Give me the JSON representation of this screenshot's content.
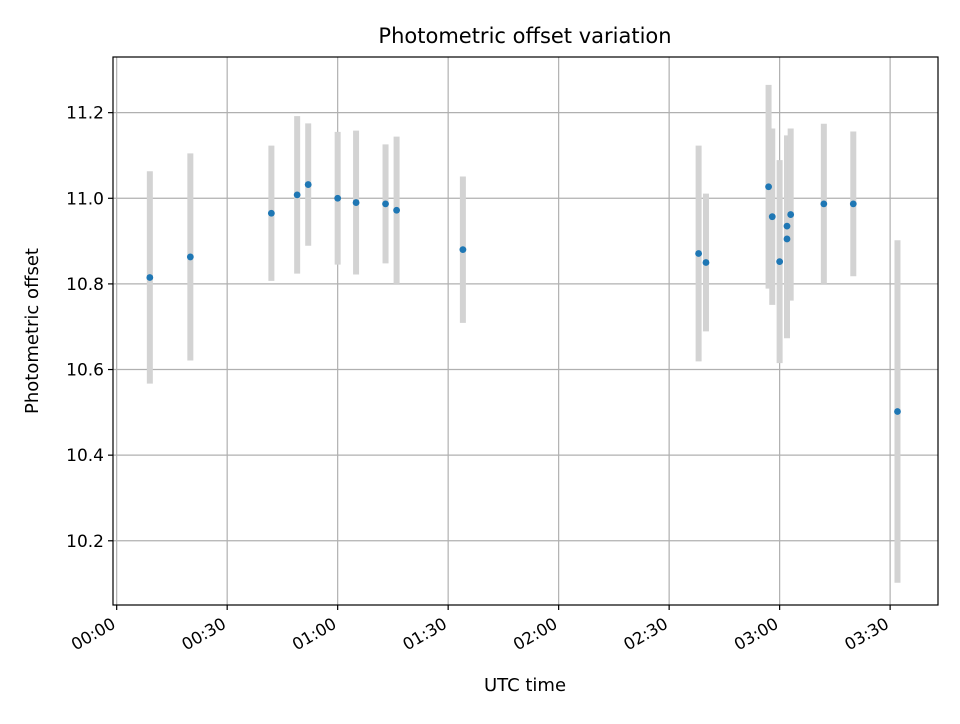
{
  "chart_data": {
    "type": "scatter",
    "title": "Photometric offset variation",
    "xlabel": "UTC time",
    "ylabel": "Photometric offset",
    "x_ticks": [
      "00:00",
      "00:30",
      "01:00",
      "01:30",
      "02:00",
      "02:30",
      "03:00",
      "03:30"
    ],
    "y_ticks": [
      10.2,
      10.4,
      10.6,
      10.8,
      11.0,
      11.2
    ],
    "xlim": [
      "-00:01",
      "03:43"
    ],
    "ylim": [
      10.05,
      11.33
    ],
    "grid": true,
    "marker_color": "#1f77b4",
    "errorbar_color": "#d3d3d3",
    "points": [
      {
        "x": "00:09",
        "y": 10.815,
        "err": 0.248
      },
      {
        "x": "00:20",
        "y": 10.863,
        "err": 0.242
      },
      {
        "x": "00:42",
        "y": 10.965,
        "err": 0.158
      },
      {
        "x": "00:49",
        "y": 11.008,
        "err": 0.184
      },
      {
        "x": "00:52",
        "y": 11.032,
        "err": 0.143
      },
      {
        "x": "01:00",
        "y": 11.0,
        "err": 0.155
      },
      {
        "x": "01:05",
        "y": 10.99,
        "err": 0.168
      },
      {
        "x": "01:13",
        "y": 10.987,
        "err": 0.139
      },
      {
        "x": "01:16",
        "y": 10.972,
        "err": 0.172
      },
      {
        "x": "01:34",
        "y": 10.88,
        "err": 0.171
      },
      {
        "x": "02:38",
        "y": 10.871,
        "err": 0.252
      },
      {
        "x": "02:40",
        "y": 10.85,
        "err": 0.161
      },
      {
        "x": "02:57",
        "y": 11.027,
        "err": 0.238
      },
      {
        "x": "02:58",
        "y": 10.957,
        "err": 0.206
      },
      {
        "x": "03:00",
        "y": 10.852,
        "err": 0.237
      },
      {
        "x": "03:02",
        "y": 10.905,
        "err": 0.232
      },
      {
        "x": "03:02",
        "y": 10.935,
        "err": 0.212
      },
      {
        "x": "03:03",
        "y": 10.962,
        "err": 0.201
      },
      {
        "x": "03:12",
        "y": 10.987,
        "err": 0.187
      },
      {
        "x": "03:20",
        "y": 10.987,
        "err": 0.169
      },
      {
        "x": "03:32",
        "y": 10.502,
        "err": 0.4
      }
    ]
  }
}
